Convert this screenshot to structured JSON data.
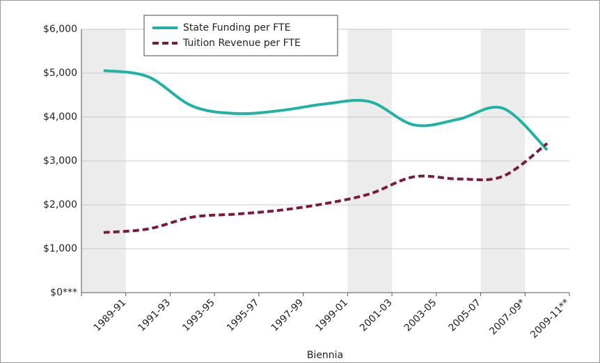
{
  "chart_data": {
    "type": "line",
    "x_label": "Biennia",
    "categories": [
      "1989-91",
      "1991-93",
      "1993-95",
      "1995-97",
      "1997-99",
      "1999-01",
      "2001-03",
      "2003-05",
      "2005-07",
      "2007-09*",
      "2009-11**"
    ],
    "series": [
      {
        "name": "State Funding per FTE",
        "color": "#1fb3a3",
        "values": [
          5060,
          4920,
          4250,
          4080,
          4150,
          4300,
          4350,
          3820,
          3950,
          4200,
          3250
        ]
      },
      {
        "name": "Tuition Revenue per FTE",
        "color": "#7b1a3e",
        "values": [
          1370,
          1450,
          1720,
          1790,
          1880,
          2030,
          2250,
          2640,
          2590,
          2650,
          3400
        ]
      }
    ],
    "ylim": [
      0,
      6000
    ],
    "yticks": [
      {
        "value": 0,
        "label": "$0***"
      },
      {
        "value": 1000,
        "label": "$1,000"
      },
      {
        "value": 2000,
        "label": "$2,000"
      },
      {
        "value": 3000,
        "label": "$3,000"
      },
      {
        "value": 4000,
        "label": "$4,000"
      },
      {
        "value": 5000,
        "label": "$5,000"
      },
      {
        "value": 6000,
        "label": "$6,000"
      }
    ],
    "grid": true
  }
}
